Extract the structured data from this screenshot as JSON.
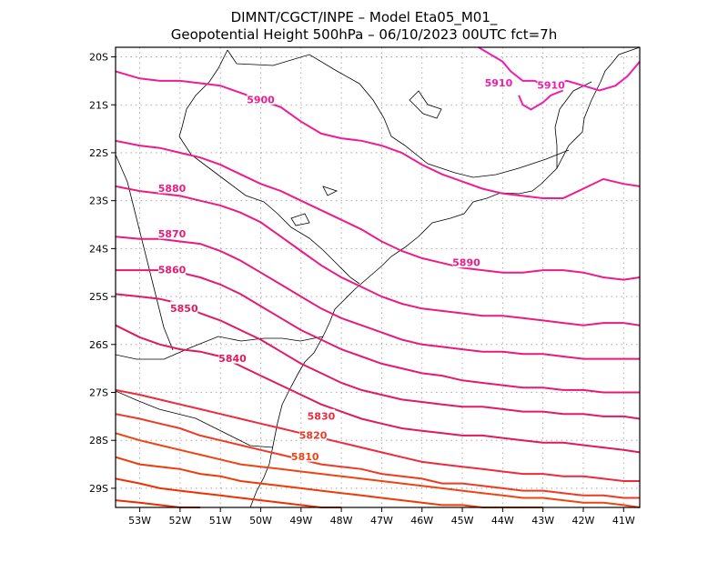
{
  "chart_data": {
    "type": "line",
    "title_line1": "DIMNT/CGCT/INPE –  Model Eta05_M01_",
    "title_line2": "Geopotential Height 500hPa –  06/10/2023 00UTC fct=7h",
    "xlim": [
      -53.6,
      -40.6
    ],
    "ylim": [
      -29.4,
      -19.8
    ],
    "x_ticks": [
      {
        "value": -53,
        "label": "53W"
      },
      {
        "value": -52,
        "label": "52W"
      },
      {
        "value": -51,
        "label": "51W"
      },
      {
        "value": -50,
        "label": "50W"
      },
      {
        "value": -49,
        "label": "49W"
      },
      {
        "value": -48,
        "label": "48W"
      },
      {
        "value": -47,
        "label": "47W"
      },
      {
        "value": -46,
        "label": "46W"
      },
      {
        "value": -45,
        "label": "45W"
      },
      {
        "value": -44,
        "label": "44W"
      },
      {
        "value": -43,
        "label": "43W"
      },
      {
        "value": -42,
        "label": "42W"
      },
      {
        "value": -41,
        "label": "41W"
      }
    ],
    "y_ticks": [
      {
        "value": -20,
        "label": "20S"
      },
      {
        "value": -21,
        "label": "21S"
      },
      {
        "value": -22,
        "label": "22S"
      },
      {
        "value": -23,
        "label": "23S"
      },
      {
        "value": -24,
        "label": "24S"
      },
      {
        "value": -25,
        "label": "25S"
      },
      {
        "value": -26,
        "label": "26S"
      },
      {
        "value": -27,
        "label": "27S"
      },
      {
        "value": -28,
        "label": "28S"
      },
      {
        "value": -29,
        "label": "29S"
      }
    ],
    "grid": "dotted",
    "series": [
      {
        "name": "5910",
        "color": "#f01eaa",
        "label": "5910",
        "label_pos": [
          -44.1,
          -20.55
        ],
        "x": [
          -44.6,
          -44.3,
          -44.0,
          -43.8,
          -43.5,
          -43.2,
          -43.0,
          -42.7,
          -42.4,
          -42.0,
          -41.6,
          -41.2,
          -40.9,
          -40.6
        ],
        "y": [
          -19.8,
          -19.95,
          -20.1,
          -20.3,
          -20.5,
          -20.5,
          -20.6,
          -20.55,
          -20.5,
          -20.6,
          -20.7,
          -20.6,
          -20.4,
          -20.1
        ]
      },
      {
        "name": "5910b",
        "color": "#f01eaa",
        "label": "5910",
        "label_pos": [
          -42.8,
          -20.6
        ],
        "x": [
          -43.6,
          -43.5,
          -43.3,
          -43.0,
          -42.8,
          -42.5
        ],
        "y": [
          -20.8,
          -21.0,
          -21.1,
          -20.95,
          -20.8,
          -20.7
        ]
      },
      {
        "name": "5900",
        "color": "#ef1d92",
        "label": "5900",
        "label_pos": [
          -50.0,
          -20.9
        ],
        "x": [
          -53.6,
          -53.0,
          -52.5,
          -52.0,
          -51.5,
          -51.0,
          -50.5,
          -50.0,
          -49.5,
          -49.0,
          -48.5,
          -48.0,
          -47.5,
          -47.0,
          -46.5,
          -46.0,
          -45.5,
          -45.0,
          -44.5,
          -44.0,
          -43.5,
          -43.0,
          -42.5,
          -42.0,
          -41.5,
          -41.0,
          -40.6
        ],
        "y": [
          -20.3,
          -20.45,
          -20.5,
          -20.5,
          -20.55,
          -20.6,
          -20.75,
          -20.9,
          -21.05,
          -21.35,
          -21.6,
          -21.7,
          -21.75,
          -21.85,
          -22.0,
          -22.25,
          -22.45,
          -22.6,
          -22.75,
          -22.85,
          -22.9,
          -22.95,
          -22.95,
          -22.75,
          -22.55,
          -22.65,
          -22.7
        ]
      },
      {
        "name": "5890",
        "color": "#ec1c8a",
        "label": "5890",
        "label_pos": [
          -44.9,
          -24.3
        ],
        "x": [
          -53.6,
          -53.0,
          -52.5,
          -52.0,
          -51.5,
          -51.0,
          -50.5,
          -50.0,
          -49.5,
          -49.0,
          -48.5,
          -48.0,
          -47.5,
          -47.0,
          -46.5,
          -46.0,
          -45.5,
          -45.0,
          -44.5,
          -44.0,
          -43.5,
          -43.0,
          -42.5,
          -42.0,
          -41.5,
          -41.0,
          -40.6
        ],
        "y": [
          -21.75,
          -21.85,
          -21.9,
          -22.0,
          -22.1,
          -22.25,
          -22.45,
          -22.65,
          -22.8,
          -23.0,
          -23.2,
          -23.4,
          -23.6,
          -23.85,
          -24.05,
          -24.2,
          -24.3,
          -24.4,
          -24.45,
          -24.5,
          -24.5,
          -24.45,
          -24.45,
          -24.5,
          -24.6,
          -24.65,
          -24.6
        ]
      },
      {
        "name": "5880",
        "color": "#ea1c82",
        "label": "5880",
        "label_pos": [
          -52.2,
          -22.75
        ],
        "x": [
          -53.6,
          -53.0,
          -52.5,
          -52.0,
          -51.5,
          -51.0,
          -50.5,
          -50.0,
          -49.5,
          -49.0,
          -48.5,
          -48.0,
          -47.5,
          -47.0,
          -46.5,
          -46.0,
          -45.5,
          -45.0,
          -44.5,
          -44.0,
          -43.5,
          -43.0,
          -42.5,
          -42.0,
          -41.5,
          -41.0,
          -40.6
        ],
        "y": [
          -22.7,
          -22.8,
          -22.85,
          -22.9,
          -23.0,
          -23.1,
          -23.25,
          -23.45,
          -23.75,
          -24.05,
          -24.35,
          -24.6,
          -24.8,
          -25.0,
          -25.15,
          -25.25,
          -25.3,
          -25.35,
          -25.4,
          -25.4,
          -25.45,
          -25.5,
          -25.55,
          -25.6,
          -25.55,
          -25.55,
          -25.6
        ]
      },
      {
        "name": "5870",
        "color": "#e81b7a",
        "label": "5870",
        "label_pos": [
          -52.2,
          -23.7
        ],
        "x": [
          -53.6,
          -53.0,
          -52.5,
          -52.0,
          -51.5,
          -51.0,
          -50.5,
          -50.0,
          -49.5,
          -49.0,
          -48.5,
          -48.0,
          -47.5,
          -47.0,
          -46.5,
          -46.0,
          -45.5,
          -45.0,
          -44.5,
          -44.0,
          -43.5,
          -43.0,
          -42.5,
          -42.0,
          -41.5,
          -41.0,
          -40.6
        ],
        "y": [
          -23.75,
          -23.8,
          -23.8,
          -23.85,
          -23.9,
          -24.05,
          -24.25,
          -24.5,
          -24.75,
          -25.0,
          -25.25,
          -25.45,
          -25.6,
          -25.75,
          -25.9,
          -26.0,
          -26.05,
          -26.1,
          -26.15,
          -26.15,
          -26.2,
          -26.2,
          -26.25,
          -26.3,
          -26.3,
          -26.3,
          -26.3
        ]
      },
      {
        "name": "5860",
        "color": "#e51a70",
        "label": "5860",
        "label_pos": [
          -52.2,
          -24.45
        ],
        "x": [
          -53.6,
          -53.0,
          -52.5,
          -52.0,
          -51.5,
          -51.0,
          -50.5,
          -50.0,
          -49.5,
          -49.0,
          -48.5,
          -48.0,
          -47.5,
          -47.0,
          -46.5,
          -46.0,
          -45.5,
          -45.0,
          -44.5,
          -44.0,
          -43.5,
          -43.0,
          -42.5,
          -42.0,
          -41.5,
          -41.0,
          -40.6
        ],
        "y": [
          -24.45,
          -24.45,
          -24.45,
          -24.5,
          -24.6,
          -24.75,
          -24.95,
          -25.2,
          -25.45,
          -25.7,
          -25.9,
          -26.1,
          -26.25,
          -26.4,
          -26.5,
          -26.6,
          -26.65,
          -26.75,
          -26.8,
          -26.85,
          -26.9,
          -26.9,
          -26.95,
          -26.95,
          -27.0,
          -27.0,
          -27.0
        ]
      },
      {
        "name": "5850",
        "color": "#e21966",
        "label": "5850",
        "label_pos": [
          -51.9,
          -25.25
        ],
        "x": [
          -53.6,
          -53.0,
          -52.5,
          -52.0,
          -51.5,
          -51.0,
          -50.5,
          -50.0,
          -49.5,
          -49.0,
          -48.5,
          -48.0,
          -47.5,
          -47.0,
          -46.5,
          -46.0,
          -45.5,
          -45.0,
          -44.5,
          -44.0,
          -43.5,
          -43.0,
          -42.5,
          -42.0,
          -41.5,
          -41.0,
          -40.6
        ],
        "y": [
          -24.95,
          -25.0,
          -25.05,
          -25.15,
          -25.35,
          -25.5,
          -25.7,
          -25.9,
          -26.15,
          -26.4,
          -26.6,
          -26.8,
          -26.95,
          -27.05,
          -27.15,
          -27.2,
          -27.25,
          -27.3,
          -27.3,
          -27.35,
          -27.4,
          -27.4,
          -27.45,
          -27.45,
          -27.5,
          -27.5,
          -27.55
        ]
      },
      {
        "name": "5840",
        "color": "#df1a5c",
        "label": "5840",
        "label_pos": [
          -50.7,
          -26.3
        ],
        "x": [
          -53.6,
          -53.0,
          -52.5,
          -52.0,
          -51.5,
          -51.0,
          -50.5,
          -50.0,
          -49.5,
          -49.0,
          -48.5,
          -48.0,
          -47.5,
          -47.0,
          -46.5,
          -46.0,
          -45.5,
          -45.0,
          -44.5,
          -44.0,
          -43.5,
          -43.0,
          -42.5,
          -42.0,
          -41.5,
          -41.0,
          -40.6
        ],
        "y": [
          -25.6,
          -25.85,
          -26.0,
          -26.1,
          -26.15,
          -26.25,
          -26.45,
          -26.65,
          -26.85,
          -27.05,
          -27.25,
          -27.4,
          -27.55,
          -27.65,
          -27.75,
          -27.8,
          -27.85,
          -27.9,
          -27.9,
          -27.95,
          -28.0,
          -28.05,
          -28.05,
          -28.1,
          -28.15,
          -28.2,
          -28.25
        ]
      },
      {
        "name": "5830",
        "color": "#ee2a3c",
        "label": "5830",
        "label_pos": [
          -48.5,
          -27.5
        ],
        "x": [
          -53.6,
          -53.0,
          -52.5,
          -52.0,
          -51.5,
          -51.0,
          -50.5,
          -50.0,
          -49.5,
          -49.0,
          -48.5,
          -48.0,
          -47.5,
          -47.0,
          -46.5,
          -46.0,
          -45.5,
          -45.0,
          -44.5,
          -44.0,
          -43.5,
          -43.0,
          -42.5,
          -42.0,
          -41.5,
          -41.0,
          -40.6
        ],
        "y": [
          -26.95,
          -27.05,
          -27.15,
          -27.25,
          -27.35,
          -27.45,
          -27.55,
          -27.65,
          -27.75,
          -27.85,
          -27.95,
          -28.05,
          -28.15,
          -28.25,
          -28.35,
          -28.45,
          -28.5,
          -28.55,
          -28.6,
          -28.65,
          -28.7,
          -28.7,
          -28.75,
          -28.75,
          -28.8,
          -28.85,
          -28.85
        ]
      },
      {
        "name": "5820",
        "color": "#ee3a24",
        "label": "5820",
        "label_pos": [
          -48.7,
          -27.9
        ],
        "x": [
          -53.6,
          -53.0,
          -52.5,
          -52.0,
          -51.5,
          -51.0,
          -50.5,
          -50.0,
          -49.5,
          -49.0,
          -48.5,
          -48.0,
          -47.5,
          -47.0,
          -46.5,
          -46.0,
          -45.5,
          -45.0,
          -44.5,
          -44.0,
          -43.5,
          -43.0,
          -42.5,
          -42.0,
          -41.5,
          -41.0,
          -40.6
        ],
        "y": [
          -27.45,
          -27.55,
          -27.65,
          -27.75,
          -27.9,
          -28.0,
          -28.1,
          -28.2,
          -28.3,
          -28.4,
          -28.5,
          -28.55,
          -28.6,
          -28.7,
          -28.75,
          -28.8,
          -28.9,
          -28.9,
          -28.95,
          -29.0,
          -29.05,
          -29.05,
          -29.1,
          -29.15,
          -29.15,
          -29.2,
          -29.2
        ]
      },
      {
        "name": "5810",
        "color": "#ee4414",
        "label": "5810",
        "label_pos": [
          -48.9,
          -28.35
        ],
        "x": [
          -53.6,
          -53.0,
          -52.5,
          -52.0,
          -51.5,
          -51.0,
          -50.5,
          -50.0,
          -49.5,
          -49.0,
          -48.5,
          -48.0,
          -47.5,
          -47.0,
          -46.5,
          -46.0,
          -45.5,
          -45.0,
          -44.5,
          -44.0,
          -43.5,
          -43.0,
          -42.5,
          -42.0,
          -41.5,
          -41.0,
          -40.6
        ],
        "y": [
          -27.85,
          -28.0,
          -28.1,
          -28.2,
          -28.3,
          -28.4,
          -28.5,
          -28.55,
          -28.6,
          -28.65,
          -28.7,
          -28.75,
          -28.8,
          -28.85,
          -28.9,
          -28.95,
          -29.0,
          -29.05,
          -29.1,
          -29.15,
          -29.2,
          -29.2,
          -29.25,
          -29.3,
          -29.3,
          -29.35,
          -29.4
        ]
      },
      {
        "name": "5800",
        "color": "#ee3a06",
        "label": "",
        "label_pos": null,
        "x": [
          -53.6,
          -53.0,
          -52.5,
          -52.0,
          -51.5,
          -51.0,
          -50.5,
          -50.0,
          -49.5,
          -49.0,
          -48.5,
          -48.0,
          -47.5,
          -47.0,
          -46.5,
          -46.0,
          -45.5,
          -45.0,
          -44.5,
          -44.0,
          -43.5,
          -43.0
        ],
        "y": [
          -28.35,
          -28.5,
          -28.55,
          -28.6,
          -28.7,
          -28.75,
          -28.85,
          -28.9,
          -28.95,
          -29.0,
          -29.05,
          -29.1,
          -29.15,
          -29.2,
          -29.25,
          -29.3,
          -29.35,
          -29.35,
          -29.4,
          -29.4,
          -29.4,
          -29.4
        ]
      },
      {
        "name": "5790",
        "color": "#ee3000",
        "label": "",
        "label_pos": null,
        "x": [
          -53.6,
          -53.0,
          -52.5,
          -52.0,
          -51.5,
          -51.0,
          -50.5,
          -50.0,
          -49.5,
          -49.0,
          -48.5,
          -48.0
        ],
        "y": [
          -28.8,
          -28.9,
          -29.0,
          -29.05,
          -29.1,
          -29.15,
          -29.2,
          -29.25,
          -29.3,
          -29.35,
          -29.4,
          -29.4
        ]
      },
      {
        "name": "5780",
        "color": "#ee2a00",
        "label": "",
        "label_pos": null,
        "x": [
          -53.6,
          -53.0,
          -52.5,
          -52.0,
          -51.5
        ],
        "y": [
          -29.25,
          -29.3,
          -29.35,
          -29.4,
          -29.4
        ]
      }
    ]
  }
}
